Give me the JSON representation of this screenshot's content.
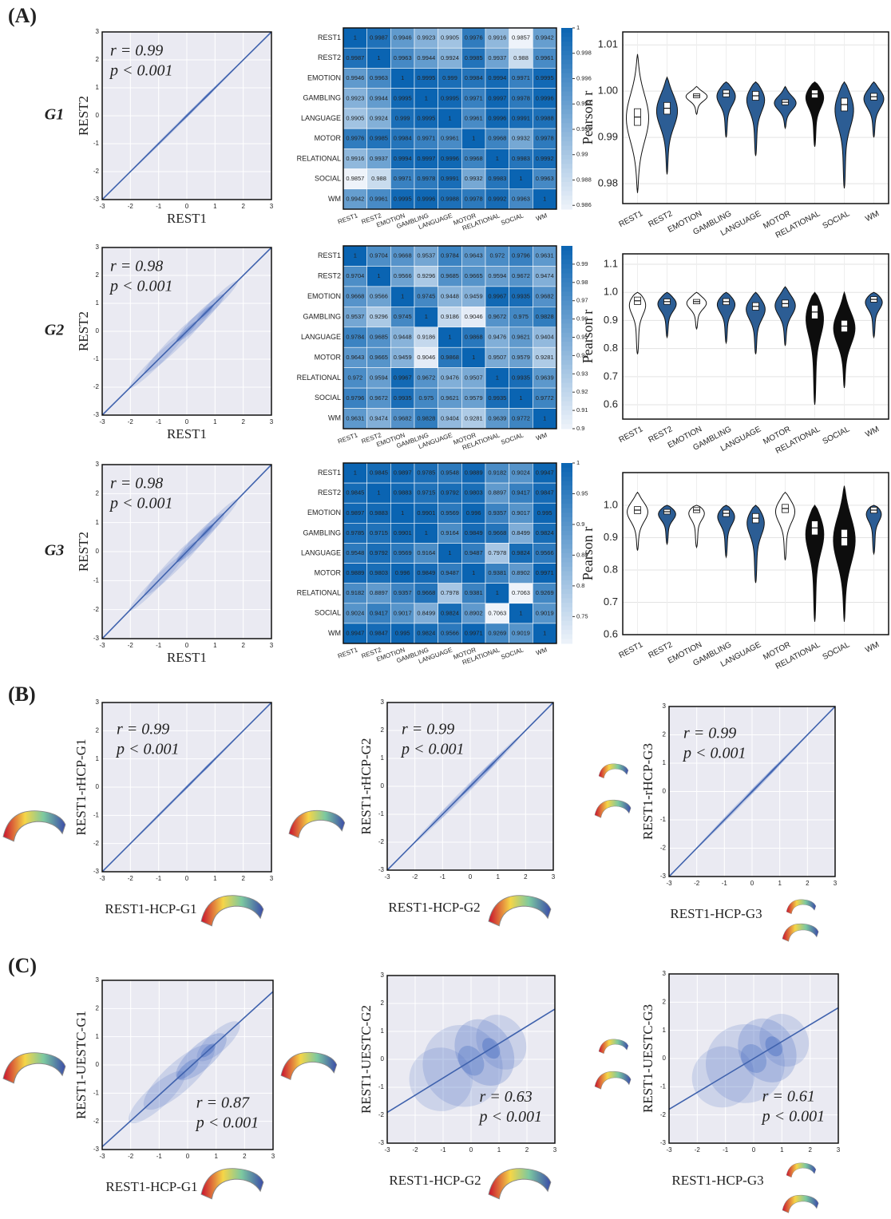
{
  "panel_labels": [
    "(A)",
    "(B)",
    "(C)"
  ],
  "chart_data": [
    {
      "type": "density",
      "title": "G1",
      "xlabel": "REST1",
      "ylabel": "REST2",
      "annotations": [
        "r = 0.99",
        "p < 0.001"
      ],
      "xlim": [
        -3,
        3
      ],
      "ylim": [
        -3,
        3
      ],
      "xticks": [
        -3,
        -2,
        -1,
        0,
        1,
        2,
        3
      ],
      "yticks": [
        -3,
        -2,
        -1,
        0,
        1,
        2,
        3
      ],
      "fit": {
        "x": [
          -3,
          3
        ],
        "y": [
          -3,
          3
        ]
      },
      "color": "#3f62ad"
    },
    {
      "type": "density",
      "title": "G2",
      "xlabel": "REST1",
      "ylabel": "REST2",
      "annotations": [
        "r = 0.98",
        "p < 0.001"
      ],
      "xlim": [
        -3,
        3
      ],
      "ylim": [
        -3,
        3
      ],
      "xticks": [
        -3,
        -2,
        -1,
        0,
        1,
        2,
        3
      ],
      "yticks": [
        -3,
        -2,
        -1,
        0,
        1,
        2,
        3
      ],
      "fit": {
        "x": [
          -3,
          3
        ],
        "y": [
          -3,
          3
        ]
      },
      "color": "#3f62ad"
    },
    {
      "type": "density",
      "title": "G3",
      "xlabel": "REST1",
      "ylabel": "REST2",
      "annotations": [
        "r = 0.98",
        "p < 0.001"
      ],
      "xlim": [
        -3,
        3
      ],
      "ylim": [
        -3,
        3
      ],
      "xticks": [
        -3,
        -2,
        -1,
        0,
        1,
        2,
        3
      ],
      "yticks": [
        -3,
        -2,
        -1,
        0,
        1,
        2,
        3
      ],
      "fit": {
        "x": [
          -3,
          3
        ],
        "y": [
          -3,
          3
        ]
      },
      "color": "#3f62ad"
    },
    {
      "type": "heatmap",
      "categories": [
        "REST1",
        "REST2",
        "EMOTION",
        "GAMBLING",
        "LANGUAGE",
        "MOTOR",
        "RELATIONAL",
        "SOCIAL",
        "WM"
      ],
      "values": [
        [
          1,
          0.9987,
          0.9946,
          0.9923,
          0.9905,
          0.9976,
          0.9916,
          0.9857,
          0.9942
        ],
        [
          0.9987,
          1,
          0.9963,
          0.9944,
          0.9924,
          0.9985,
          0.9937,
          0.988,
          0.9961
        ],
        [
          0.9946,
          0.9963,
          1,
          0.9995,
          0.999,
          0.9984,
          0.9994,
          0.9971,
          0.9995
        ],
        [
          0.9923,
          0.9944,
          0.9995,
          1,
          0.9995,
          0.9971,
          0.9997,
          0.9978,
          0.9996
        ],
        [
          0.9905,
          0.9924,
          0.999,
          0.9995,
          1,
          0.9961,
          0.9996,
          0.9991,
          0.9988
        ],
        [
          0.9976,
          0.9985,
          0.9984,
          0.9971,
          0.9961,
          1,
          0.9968,
          0.9932,
          0.9978
        ],
        [
          0.9916,
          0.9937,
          0.9994,
          0.9997,
          0.9996,
          0.9968,
          1,
          0.9983,
          0.9992
        ],
        [
          0.9857,
          0.988,
          0.9971,
          0.9978,
          0.9991,
          0.9932,
          0.9983,
          1,
          0.9963
        ],
        [
          0.9942,
          0.9961,
          0.9995,
          0.9996,
          0.9988,
          0.9978,
          0.9992,
          0.9963,
          1
        ]
      ],
      "clim": [
        0.9857,
        1
      ],
      "cticks": [
        1,
        0.998,
        0.996,
        0.994,
        0.992,
        0.99,
        0.988,
        0.986
      ],
      "colors": [
        "#eef3fa",
        "#0a64b2"
      ]
    },
    {
      "type": "heatmap",
      "categories": [
        "REST1",
        "REST2",
        "EMOTION",
        "GAMBLING",
        "LANGUAGE",
        "MOTOR",
        "RELATIONAL",
        "SOCIAL",
        "WM"
      ],
      "values": [
        [
          1,
          0.9704,
          0.9668,
          0.9537,
          0.9784,
          0.9643,
          0.972,
          0.9796,
          0.9631
        ],
        [
          0.9704,
          1,
          0.9566,
          0.9296,
          0.9685,
          0.9665,
          0.9594,
          0.9672,
          0.9474
        ],
        [
          0.9668,
          0.9566,
          1,
          0.9745,
          0.9448,
          0.9459,
          0.9967,
          0.9935,
          0.9682
        ],
        [
          0.9537,
          0.9296,
          0.9745,
          1,
          0.9186,
          0.9046,
          0.9672,
          0.975,
          0.9828
        ],
        [
          0.9784,
          0.9685,
          0.9448,
          0.9186,
          1,
          0.9868,
          0.9476,
          0.9621,
          0.9404
        ],
        [
          0.9643,
          0.9665,
          0.9459,
          0.9046,
          0.9868,
          1,
          0.9507,
          0.9579,
          0.9281
        ],
        [
          0.972,
          0.9594,
          0.9967,
          0.9672,
          0.9476,
          0.9507,
          1,
          0.9935,
          0.9639
        ],
        [
          0.9796,
          0.9672,
          0.9935,
          0.975,
          0.9621,
          0.9579,
          0.9935,
          1,
          0.9772
        ],
        [
          0.9631,
          0.9474,
          0.9682,
          0.9828,
          0.9404,
          0.9281,
          0.9639,
          0.9772,
          1
        ]
      ],
      "clim": [
        0.9,
        1
      ],
      "cticks": [
        0.99,
        0.98,
        0.97,
        0.96,
        0.95,
        0.94,
        0.93,
        0.92,
        0.91,
        0.9
      ],
      "colors": [
        "#eef3fa",
        "#0a64b2"
      ]
    },
    {
      "type": "heatmap",
      "categories": [
        "REST1",
        "REST2",
        "EMOTION",
        "GAMBLING",
        "LANGUAGE",
        "MOTOR",
        "RELATIONAL",
        "SOCIAL",
        "WM"
      ],
      "values": [
        [
          1,
          0.9845,
          0.9897,
          0.9785,
          0.9548,
          0.9889,
          0.9182,
          0.9024,
          0.9947
        ],
        [
          0.9845,
          1,
          0.9883,
          0.9715,
          0.9792,
          0.9803,
          0.8897,
          0.9417,
          0.9847
        ],
        [
          0.9897,
          0.9883,
          1,
          0.9901,
          0.9569,
          0.996,
          0.9357,
          0.9017,
          0.995
        ],
        [
          0.9785,
          0.9715,
          0.9901,
          1,
          0.9164,
          0.9849,
          0.9668,
          0.8499,
          0.9824
        ],
        [
          0.9548,
          0.9792,
          0.9569,
          0.9164,
          1,
          0.9487,
          0.7978,
          0.9824,
          0.9566
        ],
        [
          0.9889,
          0.9803,
          0.996,
          0.9849,
          0.9487,
          1,
          0.9381,
          0.8902,
          0.9971
        ],
        [
          0.9182,
          0.8897,
          0.9357,
          0.9668,
          0.7978,
          0.9381,
          1,
          0.7063,
          0.9269
        ],
        [
          0.9024,
          0.9417,
          0.9017,
          0.8499,
          0.9824,
          0.8902,
          0.7063,
          1,
          0.9019
        ],
        [
          0.9947,
          0.9847,
          0.995,
          0.9824,
          0.9566,
          0.9971,
          0.9269,
          0.9019,
          1
        ]
      ],
      "clim": [
        0.7063,
        1
      ],
      "cticks": [
        1,
        0.95,
        0.9,
        0.85,
        0.8,
        0.75
      ],
      "colors": [
        "#eef3fa",
        "#0a64b2"
      ]
    },
    {
      "type": "violin",
      "ylabel": "Pearson r",
      "categories": [
        "REST1",
        "REST2",
        "EMOTION",
        "GAMBLING",
        "LANGUAGE",
        "MOTOR",
        "RELATIONAL",
        "SOCIAL",
        "WM"
      ],
      "medians": [
        0.9944,
        0.9963,
        0.999,
        0.9995,
        0.999,
        0.9976,
        0.9994,
        0.9971,
        0.9988
      ],
      "low": [
        0.978,
        0.982,
        0.995,
        0.99,
        0.986,
        0.992,
        0.988,
        0.979,
        0.99
      ],
      "high": [
        1.008,
        1.003,
        1.001,
        1.002,
        1.002,
        1.001,
        1.002,
        1.002,
        1.002
      ],
      "colors": [
        "#ffffff",
        "#2c5d94",
        "#ffffff",
        "#2c5d94",
        "#2c5d94",
        "#2c5d94",
        "#0d0d0d",
        "#2c5d94",
        "#2c5d94"
      ],
      "ylim": [
        0.9757,
        1.0128
      ],
      "yticks": [
        0.98,
        0.99,
        {
          "value": 1,
          "label": "1.00"
        },
        1.01
      ],
      "grid": true
    },
    {
      "type": "violin",
      "ylabel": "Pearson r",
      "categories": [
        "REST1",
        "REST2",
        "EMOTION",
        "GAMBLING",
        "LANGUAGE",
        "MOTOR",
        "RELATIONAL",
        "SOCIAL",
        "WM"
      ],
      "medians": [
        0.97,
        0.967,
        0.967,
        0.967,
        0.95,
        0.96,
        0.93,
        0.88,
        0.975
      ],
      "low": [
        0.78,
        0.84,
        0.87,
        0.82,
        0.78,
        0.81,
        0.6,
        0.66,
        0.84
      ],
      "high": [
        1.0,
        1.0,
        1.0,
        1.0,
        1.0,
        1.02,
        1.0,
        1.0,
        1.0
      ],
      "colors": [
        "#ffffff",
        "#2c5d94",
        "#ffffff",
        "#2c5d94",
        "#2c5d94",
        "#2c5d94",
        "#0d0d0d",
        "#0d0d0d",
        "#2c5d94"
      ],
      "ylim": [
        0.549,
        1.137
      ],
      "yticks": [
        0.6,
        0.7,
        0.8,
        0.9,
        {
          "value": 1,
          "label": "1.0"
        },
        1.1
      ],
      "grid": true
    },
    {
      "type": "violin",
      "ylabel": "Pearson r",
      "categories": [
        "REST1",
        "REST2",
        "EMOTION",
        "GAMBLING",
        "LANGUAGE",
        "MOTOR",
        "RELATIONAL",
        "SOCIAL",
        "WM"
      ],
      "medians": [
        0.985,
        0.98,
        0.985,
        0.975,
        0.96,
        0.99,
        0.93,
        0.9,
        0.985
      ],
      "low": [
        0.86,
        0.88,
        0.87,
        0.84,
        0.76,
        0.83,
        0.64,
        0.64,
        0.85
      ],
      "high": [
        1.04,
        1.0,
        1.0,
        1.0,
        1.0,
        1.04,
        1.0,
        1.06,
        1.0
      ],
      "colors": [
        "#ffffff",
        "#2c5d94",
        "#ffffff",
        "#2c5d94",
        "#2c5d94",
        "#ffffff",
        "#0d0d0d",
        "#0d0d0d",
        "#2c5d94"
      ],
      "ylim": [
        0.6,
        1.101
      ],
      "yticks": [
        0.6,
        0.7,
        0.8,
        0.9,
        {
          "value": 1,
          "label": "1.0"
        }
      ],
      "grid": true
    },
    {
      "type": "density",
      "xlabel": "REST1-HCP-G1",
      "ylabel": "REST1-rHCP-G1",
      "annotations": [
        "r = 0.99",
        "p < 0.001"
      ],
      "xlim": [
        -3,
        3
      ],
      "ylim": [
        -3,
        3
      ],
      "xticks": [
        -3,
        -2,
        -1,
        0,
        1,
        2,
        3
      ],
      "yticks": [
        -3,
        -2,
        -1,
        0,
        1,
        2,
        3
      ],
      "fit": {
        "x": [
          -3,
          3
        ],
        "y": [
          -3,
          3
        ]
      },
      "color": "#3f62ad"
    },
    {
      "type": "density",
      "xlabel": "REST1-HCP-G2",
      "ylabel": "REST1-rHCP-G2",
      "annotations": [
        "r = 0.99",
        "p < 0.001"
      ],
      "xlim": [
        -3,
        3
      ],
      "ylim": [
        -3,
        3
      ],
      "xticks": [
        -3,
        -2,
        -1,
        0,
        1,
        2,
        3
      ],
      "yticks": [
        -3,
        -2,
        -1,
        0,
        1,
        2,
        3
      ],
      "fit": {
        "x": [
          -3,
          3
        ],
        "y": [
          -3,
          3
        ]
      },
      "color": "#3f62ad"
    },
    {
      "type": "density",
      "xlabel": "REST1-HCP-G3",
      "ylabel": "REST1-rHCP-G3",
      "annotations": [
        "r = 0.99",
        "p < 0.001"
      ],
      "xlim": [
        -3,
        3
      ],
      "ylim": [
        -3,
        3
      ],
      "xticks": [
        -3,
        -2,
        -1,
        0,
        1,
        2,
        3
      ],
      "yticks": [
        -3,
        -2,
        -1,
        0,
        1,
        2,
        3
      ],
      "fit": {
        "x": [
          -3,
          3
        ],
        "y": [
          -3,
          3
        ]
      },
      "color": "#3f62ad"
    },
    {
      "type": "density",
      "xlabel": "REST1-HCP-G1",
      "ylabel": "REST1-UESTC-G1",
      "annotations": [
        "r = 0.87",
        "p < 0.001"
      ],
      "xlim": [
        -3,
        3
      ],
      "ylim": [
        -3,
        3
      ],
      "xticks": [
        -3,
        -2,
        -1,
        0,
        1,
        2,
        3
      ],
      "yticks": [
        -3,
        -2,
        -1,
        0,
        1,
        2,
        3
      ],
      "fit": {
        "x": [
          -3,
          3
        ],
        "y": [
          -2.9,
          2.6
        ]
      },
      "color": "#3f62ad"
    },
    {
      "type": "density",
      "xlabel": "REST1-HCP-G2",
      "ylabel": "REST1-UESTC-G2",
      "annotations": [
        "r = 0.63",
        "p < 0.001"
      ],
      "xlim": [
        -3,
        3
      ],
      "ylim": [
        -3,
        3
      ],
      "xticks": [
        -3,
        -2,
        -1,
        0,
        1,
        2,
        3
      ],
      "yticks": [
        -3,
        -2,
        -1,
        0,
        1,
        2,
        3
      ],
      "fit": {
        "x": [
          -3,
          3
        ],
        "y": [
          -1.9,
          1.8
        ]
      },
      "color": "#3f62ad"
    },
    {
      "type": "density",
      "xlabel": "REST1-HCP-G3",
      "ylabel": "REST1-UESTC-G3",
      "annotations": [
        "r = 0.61",
        "p < 0.001"
      ],
      "xlim": [
        -3,
        3
      ],
      "ylim": [
        -3,
        3
      ],
      "xticks": [
        -3,
        -2,
        -1,
        0,
        1,
        2,
        3
      ],
      "yticks": [
        -3,
        -2,
        -1,
        0,
        1,
        2,
        3
      ],
      "fit": {
        "x": [
          -3,
          3
        ],
        "y": [
          -1.8,
          1.8
        ]
      },
      "color": "#3f62ad"
    }
  ]
}
